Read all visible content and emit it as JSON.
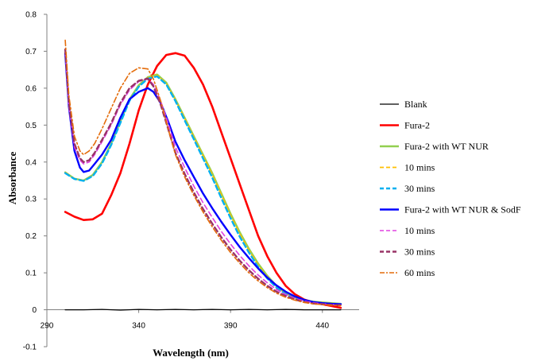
{
  "chart_data": {
    "type": "line",
    "title": "",
    "xlabel": "Wavelength (nm)",
    "ylabel": "Absorbance",
    "xlim": [
      290,
      460
    ],
    "ylim": [
      -0.1,
      0.8
    ],
    "xticks": [
      290,
      340,
      390,
      440
    ],
    "yticks": [
      -0.1,
      0,
      0.1,
      0.2,
      0.3,
      0.4,
      0.5,
      0.6,
      0.7,
      0.8
    ],
    "grid": false,
    "legend_position": "right",
    "series": [
      {
        "name": "Blank",
        "color": "#000000",
        "dash": "solid",
        "width": 1.3,
        "points": [
          [
            300,
            0.0
          ],
          [
            310,
            0.0
          ],
          [
            320,
            0.001
          ],
          [
            330,
            -0.001
          ],
          [
            340,
            0.001
          ],
          [
            350,
            0.0
          ],
          [
            360,
            0.001
          ],
          [
            370,
            0.0
          ],
          [
            380,
            0.001
          ],
          [
            390,
            0.0
          ],
          [
            400,
            0.001
          ],
          [
            410,
            0.0
          ],
          [
            420,
            0.001
          ],
          [
            430,
            0.0
          ],
          [
            440,
            0.0
          ],
          [
            450,
            0.0
          ]
        ]
      },
      {
        "name": "Fura-2",
        "color": "#ff0000",
        "dash": "solid",
        "width": 2.6,
        "points": [
          [
            300,
            0.265
          ],
          [
            305,
            0.252
          ],
          [
            310,
            0.243
          ],
          [
            315,
            0.245
          ],
          [
            320,
            0.26
          ],
          [
            325,
            0.31
          ],
          [
            330,
            0.37
          ],
          [
            335,
            0.45
          ],
          [
            340,
            0.54
          ],
          [
            345,
            0.61
          ],
          [
            350,
            0.66
          ],
          [
            355,
            0.69
          ],
          [
            360,
            0.695
          ],
          [
            365,
            0.688
          ],
          [
            370,
            0.655
          ],
          [
            375,
            0.61
          ],
          [
            380,
            0.55
          ],
          [
            385,
            0.48
          ],
          [
            390,
            0.41
          ],
          [
            395,
            0.34
          ],
          [
            400,
            0.27
          ],
          [
            405,
            0.2
          ],
          [
            410,
            0.145
          ],
          [
            415,
            0.1
          ],
          [
            420,
            0.065
          ],
          [
            425,
            0.042
          ],
          [
            430,
            0.028
          ],
          [
            435,
            0.02
          ],
          [
            440,
            0.015
          ],
          [
            445,
            0.01
          ],
          [
            450,
            0.005
          ]
        ]
      },
      {
        "name": "Fura-2 with WT NUR",
        "color": "#92d050",
        "dash": "solid",
        "width": 2.4,
        "points": [
          [
            300,
            0.372
          ],
          [
            305,
            0.355
          ],
          [
            310,
            0.35
          ],
          [
            315,
            0.365
          ],
          [
            320,
            0.4
          ],
          [
            325,
            0.45
          ],
          [
            330,
            0.51
          ],
          [
            335,
            0.57
          ],
          [
            340,
            0.608
          ],
          [
            345,
            0.63
          ],
          [
            350,
            0.637
          ],
          [
            355,
            0.615
          ],
          [
            360,
            0.57
          ],
          [
            365,
            0.52
          ],
          [
            370,
            0.47
          ],
          [
            375,
            0.42
          ],
          [
            380,
            0.37
          ],
          [
            385,
            0.315
          ],
          [
            390,
            0.26
          ],
          [
            395,
            0.21
          ],
          [
            400,
            0.165
          ],
          [
            405,
            0.125
          ],
          [
            410,
            0.092
          ],
          [
            415,
            0.065
          ],
          [
            420,
            0.045
          ],
          [
            425,
            0.033
          ],
          [
            430,
            0.026
          ],
          [
            435,
            0.022
          ],
          [
            440,
            0.02
          ],
          [
            445,
            0.018
          ],
          [
            450,
            0.016
          ]
        ]
      },
      {
        "name": "10 mins",
        "color": "#ffc000",
        "dash": "dash",
        "width": 1.8,
        "points": [
          [
            300,
            0.372
          ],
          [
            305,
            0.355
          ],
          [
            310,
            0.35
          ],
          [
            315,
            0.364
          ],
          [
            320,
            0.398
          ],
          [
            325,
            0.448
          ],
          [
            330,
            0.508
          ],
          [
            335,
            0.568
          ],
          [
            340,
            0.606
          ],
          [
            345,
            0.628
          ],
          [
            350,
            0.635
          ],
          [
            355,
            0.613
          ],
          [
            360,
            0.568
          ],
          [
            365,
            0.518
          ],
          [
            370,
            0.467
          ],
          [
            375,
            0.417
          ],
          [
            380,
            0.366
          ],
          [
            385,
            0.311
          ],
          [
            390,
            0.256
          ],
          [
            395,
            0.206
          ],
          [
            400,
            0.161
          ],
          [
            405,
            0.121
          ],
          [
            410,
            0.089
          ],
          [
            415,
            0.063
          ],
          [
            420,
            0.044
          ],
          [
            425,
            0.032
          ],
          [
            430,
            0.025
          ],
          [
            435,
            0.021
          ],
          [
            440,
            0.019
          ],
          [
            445,
            0.017
          ],
          [
            450,
            0.015
          ]
        ]
      },
      {
        "name": "30 mins",
        "color": "#00b0f0",
        "dash": "dash",
        "width": 2.4,
        "points": [
          [
            300,
            0.37
          ],
          [
            305,
            0.354
          ],
          [
            310,
            0.349
          ],
          [
            315,
            0.362
          ],
          [
            320,
            0.396
          ],
          [
            325,
            0.446
          ],
          [
            330,
            0.506
          ],
          [
            335,
            0.566
          ],
          [
            340,
            0.604
          ],
          [
            345,
            0.626
          ],
          [
            350,
            0.632
          ],
          [
            355,
            0.61
          ],
          [
            360,
            0.565
          ],
          [
            365,
            0.513
          ],
          [
            370,
            0.462
          ],
          [
            375,
            0.41
          ],
          [
            380,
            0.358
          ],
          [
            385,
            0.302
          ],
          [
            390,
            0.248
          ],
          [
            395,
            0.198
          ],
          [
            400,
            0.155
          ],
          [
            405,
            0.116
          ],
          [
            410,
            0.085
          ],
          [
            415,
            0.06
          ],
          [
            420,
            0.042
          ],
          [
            425,
            0.03
          ],
          [
            430,
            0.023
          ],
          [
            435,
            0.02
          ],
          [
            440,
            0.018
          ],
          [
            445,
            0.016
          ],
          [
            450,
            0.015
          ]
        ]
      },
      {
        "name": "Fura-2 with WT NUR & SodF",
        "color": "#0000ff",
        "dash": "solid",
        "width": 2.4,
        "points": [
          [
            300,
            0.695
          ],
          [
            302,
            0.55
          ],
          [
            305,
            0.43
          ],
          [
            308,
            0.385
          ],
          [
            310,
            0.373
          ],
          [
            313,
            0.377
          ],
          [
            316,
            0.395
          ],
          [
            320,
            0.42
          ],
          [
            325,
            0.46
          ],
          [
            330,
            0.52
          ],
          [
            335,
            0.57
          ],
          [
            340,
            0.59
          ],
          [
            345,
            0.6
          ],
          [
            348,
            0.59
          ],
          [
            352,
            0.56
          ],
          [
            356,
            0.51
          ],
          [
            360,
            0.455
          ],
          [
            365,
            0.405
          ],
          [
            370,
            0.36
          ],
          [
            375,
            0.315
          ],
          [
            380,
            0.275
          ],
          [
            385,
            0.238
          ],
          [
            390,
            0.203
          ],
          [
            395,
            0.17
          ],
          [
            400,
            0.14
          ],
          [
            405,
            0.112
          ],
          [
            410,
            0.087
          ],
          [
            415,
            0.066
          ],
          [
            420,
            0.049
          ],
          [
            425,
            0.036
          ],
          [
            430,
            0.027
          ],
          [
            435,
            0.021
          ],
          [
            440,
            0.018
          ],
          [
            445,
            0.016
          ],
          [
            450,
            0.015
          ]
        ]
      },
      {
        "name": "10 mins",
        "color": "#e040e0",
        "dash": "dash",
        "width": 1.6,
        "points": [
          [
            300,
            0.7
          ],
          [
            302,
            0.55
          ],
          [
            305,
            0.44
          ],
          [
            308,
            0.405
          ],
          [
            310,
            0.395
          ],
          [
            313,
            0.4
          ],
          [
            316,
            0.42
          ],
          [
            320,
            0.455
          ],
          [
            325,
            0.5
          ],
          [
            330,
            0.555
          ],
          [
            335,
            0.595
          ],
          [
            340,
            0.618
          ],
          [
            345,
            0.625
          ],
          [
            348,
            0.61
          ],
          [
            352,
            0.565
          ],
          [
            356,
            0.505
          ],
          [
            360,
            0.44
          ],
          [
            365,
            0.385
          ],
          [
            370,
            0.335
          ],
          [
            375,
            0.29
          ],
          [
            380,
            0.25
          ],
          [
            385,
            0.212
          ],
          [
            390,
            0.178
          ],
          [
            395,
            0.147
          ],
          [
            400,
            0.119
          ],
          [
            405,
            0.094
          ],
          [
            410,
            0.073
          ],
          [
            415,
            0.055
          ],
          [
            420,
            0.041
          ],
          [
            425,
            0.031
          ],
          [
            430,
            0.024
          ],
          [
            435,
            0.019
          ],
          [
            440,
            0.016
          ],
          [
            445,
            0.014
          ],
          [
            450,
            0.013
          ]
        ]
      },
      {
        "name": "30 mins",
        "color": "#993366",
        "dash": "dash",
        "width": 2.4,
        "points": [
          [
            300,
            0.705
          ],
          [
            302,
            0.56
          ],
          [
            305,
            0.45
          ],
          [
            308,
            0.41
          ],
          [
            310,
            0.4
          ],
          [
            313,
            0.405
          ],
          [
            316,
            0.425
          ],
          [
            320,
            0.46
          ],
          [
            325,
            0.505
          ],
          [
            330,
            0.56
          ],
          [
            335,
            0.6
          ],
          [
            340,
            0.62
          ],
          [
            345,
            0.626
          ],
          [
            348,
            0.605
          ],
          [
            352,
            0.555
          ],
          [
            356,
            0.49
          ],
          [
            360,
            0.425
          ],
          [
            365,
            0.368
          ],
          [
            370,
            0.318
          ],
          [
            375,
            0.273
          ],
          [
            380,
            0.233
          ],
          [
            385,
            0.196
          ],
          [
            390,
            0.163
          ],
          [
            395,
            0.133
          ],
          [
            400,
            0.107
          ],
          [
            405,
            0.084
          ],
          [
            410,
            0.065
          ],
          [
            415,
            0.049
          ],
          [
            420,
            0.037
          ],
          [
            425,
            0.028
          ],
          [
            430,
            0.021
          ],
          [
            435,
            0.017
          ],
          [
            440,
            0.015
          ],
          [
            445,
            0.013
          ],
          [
            450,
            0.012
          ]
        ]
      },
      {
        "name": "60 mins",
        "color": "#e46c0a",
        "dash": "dashdot",
        "width": 1.6,
        "points": [
          [
            300,
            0.73
          ],
          [
            302,
            0.58
          ],
          [
            305,
            0.47
          ],
          [
            308,
            0.43
          ],
          [
            310,
            0.42
          ],
          [
            313,
            0.43
          ],
          [
            316,
            0.45
          ],
          [
            320,
            0.49
          ],
          [
            325,
            0.545
          ],
          [
            330,
            0.6
          ],
          [
            335,
            0.64
          ],
          [
            340,
            0.655
          ],
          [
            345,
            0.652
          ],
          [
            348,
            0.625
          ],
          [
            352,
            0.565
          ],
          [
            356,
            0.49
          ],
          [
            360,
            0.42
          ],
          [
            365,
            0.36
          ],
          [
            370,
            0.31
          ],
          [
            375,
            0.265
          ],
          [
            380,
            0.225
          ],
          [
            385,
            0.188
          ],
          [
            390,
            0.155
          ],
          [
            395,
            0.126
          ],
          [
            400,
            0.1
          ],
          [
            405,
            0.078
          ],
          [
            410,
            0.06
          ],
          [
            415,
            0.045
          ],
          [
            420,
            0.034
          ],
          [
            425,
            0.026
          ],
          [
            430,
            0.02
          ],
          [
            435,
            0.016
          ],
          [
            440,
            0.014
          ],
          [
            445,
            0.012
          ],
          [
            450,
            0.011
          ]
        ]
      }
    ]
  }
}
